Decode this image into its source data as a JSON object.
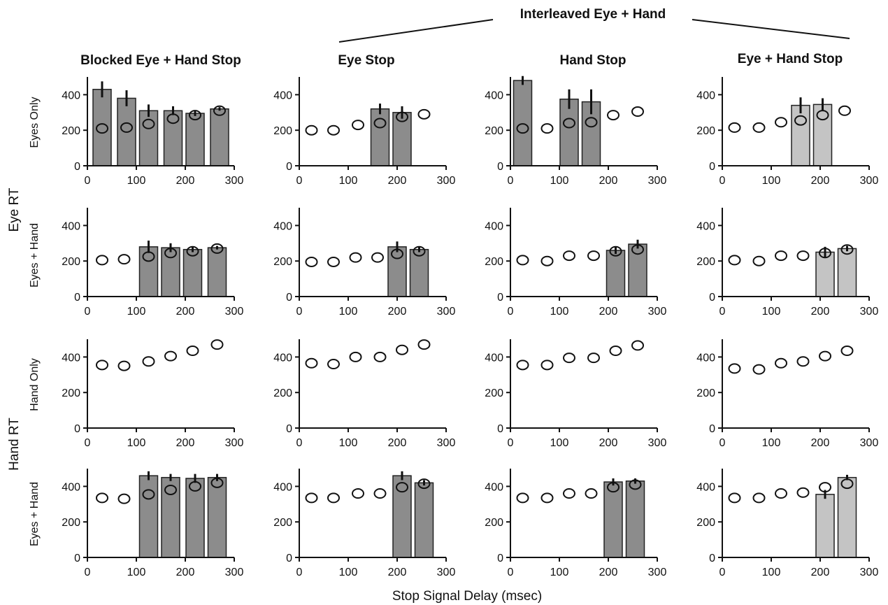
{
  "figure": {
    "group_title": "Interleaved Eye + Hand",
    "column_titles": [
      "Blocked Eye + Hand Stop",
      "Eye Stop",
      "Hand Stop",
      "Eye + Hand Stop"
    ],
    "row_labels": [
      "Eyes Only",
      "Eyes + Hand",
      "Hand Only",
      "Eyes + Hand"
    ],
    "side_labels": [
      "Eye RT",
      "Hand RT"
    ],
    "x_axis_label": "Stop Signal Delay (msec)",
    "colors": {
      "bar_dark": "#8c8c8c",
      "bar_light": "#c4c4c4",
      "axis": "#111111",
      "marker_fill": "#ffffff"
    }
  },
  "chart_data": [
    {
      "type": "bar+scatter",
      "column": "Blocked Eye + Hand Stop",
      "row": "Eyes Only",
      "xlim": [
        0,
        300
      ],
      "ylim": [
        0,
        500
      ],
      "xticks": [
        0,
        100,
        200,
        300
      ],
      "yticks": [
        0,
        200,
        400
      ],
      "bars": [
        {
          "x": 30,
          "value": 430,
          "err": 45
        },
        {
          "x": 80,
          "value": 380,
          "err": 45
        },
        {
          "x": 125,
          "value": 310,
          "err": 35
        },
        {
          "x": 175,
          "value": 310,
          "err": 25
        },
        {
          "x": 220,
          "value": 295,
          "err": 15
        },
        {
          "x": 270,
          "value": 320,
          "err": 10
        }
      ],
      "points": [
        {
          "x": 30,
          "y": 210
        },
        {
          "x": 80,
          "y": 215
        },
        {
          "x": 125,
          "y": 235
        },
        {
          "x": 175,
          "y": 265
        },
        {
          "x": 220,
          "y": 285
        },
        {
          "x": 270,
          "y": 310
        }
      ]
    },
    {
      "type": "bar+scatter",
      "column": "Eye Stop",
      "row": "Eyes Only",
      "xlim": [
        0,
        300
      ],
      "ylim": [
        0,
        500
      ],
      "xticks": [
        0,
        100,
        200,
        300
      ],
      "yticks": [
        0,
        200,
        400
      ],
      "bars": [
        {
          "x": 165,
          "value": 320,
          "err": 30
        },
        {
          "x": 210,
          "value": 300,
          "err": 35
        }
      ],
      "points": [
        {
          "x": 25,
          "y": 200
        },
        {
          "x": 70,
          "y": 200
        },
        {
          "x": 120,
          "y": 230
        },
        {
          "x": 165,
          "y": 240
        },
        {
          "x": 210,
          "y": 275
        },
        {
          "x": 255,
          "y": 290
        }
      ]
    },
    {
      "type": "bar+scatter",
      "column": "Hand Stop",
      "row": "Eyes Only",
      "xlim": [
        0,
        300
      ],
      "ylim": [
        0,
        500
      ],
      "xticks": [
        0,
        100,
        200,
        300
      ],
      "yticks": [
        0,
        200,
        400
      ],
      "bars": [
        {
          "x": 25,
          "value": 480,
          "err": 25
        },
        {
          "x": 120,
          "value": 375,
          "err": 55
        },
        {
          "x": 165,
          "value": 360,
          "err": 70
        }
      ],
      "points": [
        {
          "x": 25,
          "y": 210
        },
        {
          "x": 75,
          "y": 210
        },
        {
          "x": 120,
          "y": 240
        },
        {
          "x": 165,
          "y": 245
        },
        {
          "x": 210,
          "y": 285
        },
        {
          "x": 260,
          "y": 305
        }
      ]
    },
    {
      "type": "bar+scatter",
      "column": "Eye + Hand Stop",
      "row": "Eyes Only",
      "xlim": [
        0,
        300
      ],
      "ylim": [
        0,
        500
      ],
      "xticks": [
        0,
        100,
        200,
        300
      ],
      "yticks": [
        0,
        200,
        400
      ],
      "bar_shade": "light",
      "bars": [
        {
          "x": 160,
          "value": 340,
          "err": 45
        },
        {
          "x": 205,
          "value": 345,
          "err": 35
        }
      ],
      "points": [
        {
          "x": 25,
          "y": 215
        },
        {
          "x": 75,
          "y": 215
        },
        {
          "x": 120,
          "y": 245
        },
        {
          "x": 160,
          "y": 255
        },
        {
          "x": 205,
          "y": 285
        },
        {
          "x": 250,
          "y": 310
        }
      ]
    },
    {
      "type": "bar+scatter",
      "column": "Blocked Eye + Hand Stop",
      "row": "Eyes + Hand",
      "xlim": [
        0,
        300
      ],
      "ylim": [
        0,
        500
      ],
      "xticks": [
        0,
        100,
        200,
        300
      ],
      "yticks": [
        0,
        200,
        400
      ],
      "bars": [
        {
          "x": 125,
          "value": 280,
          "err": 35
        },
        {
          "x": 170,
          "value": 275,
          "err": 25
        },
        {
          "x": 215,
          "value": 265,
          "err": 15
        },
        {
          "x": 265,
          "value": 275,
          "err": 10
        }
      ],
      "points": [
        {
          "x": 30,
          "y": 205
        },
        {
          "x": 75,
          "y": 210
        },
        {
          "x": 125,
          "y": 225
        },
        {
          "x": 170,
          "y": 245
        },
        {
          "x": 215,
          "y": 255
        },
        {
          "x": 265,
          "y": 270
        }
      ]
    },
    {
      "type": "bar+scatter",
      "column": "Eye Stop",
      "row": "Eyes + Hand",
      "xlim": [
        0,
        300
      ],
      "ylim": [
        0,
        500
      ],
      "xticks": [
        0,
        100,
        200,
        300
      ],
      "yticks": [
        0,
        200,
        400
      ],
      "bars": [
        {
          "x": 200,
          "value": 280,
          "err": 30
        },
        {
          "x": 245,
          "value": 265,
          "err": 15
        }
      ],
      "points": [
        {
          "x": 25,
          "y": 195
        },
        {
          "x": 70,
          "y": 195
        },
        {
          "x": 115,
          "y": 220
        },
        {
          "x": 160,
          "y": 220
        },
        {
          "x": 200,
          "y": 240
        },
        {
          "x": 245,
          "y": 255
        }
      ]
    },
    {
      "type": "bar+scatter",
      "column": "Hand Stop",
      "row": "Eyes + Hand",
      "xlim": [
        0,
        300
      ],
      "ylim": [
        0,
        500
      ],
      "xticks": [
        0,
        100,
        200,
        300
      ],
      "yticks": [
        0,
        200,
        400
      ],
      "bars": [
        {
          "x": 215,
          "value": 260,
          "err": 20
        },
        {
          "x": 260,
          "value": 295,
          "err": 25
        }
      ],
      "points": [
        {
          "x": 25,
          "y": 205
        },
        {
          "x": 75,
          "y": 200
        },
        {
          "x": 120,
          "y": 230
        },
        {
          "x": 170,
          "y": 230
        },
        {
          "x": 215,
          "y": 255
        },
        {
          "x": 260,
          "y": 265
        }
      ]
    },
    {
      "type": "bar+scatter",
      "column": "Eye + Hand Stop",
      "row": "Eyes + Hand",
      "xlim": [
        0,
        300
      ],
      "ylim": [
        0,
        500
      ],
      "xticks": [
        0,
        100,
        200,
        300
      ],
      "yticks": [
        0,
        200,
        400
      ],
      "bar_shade": "light",
      "bars": [
        {
          "x": 210,
          "value": 250,
          "err": 30
        },
        {
          "x": 255,
          "value": 270,
          "err": 15
        }
      ],
      "points": [
        {
          "x": 25,
          "y": 205
        },
        {
          "x": 75,
          "y": 200
        },
        {
          "x": 120,
          "y": 230
        },
        {
          "x": 165,
          "y": 230
        },
        {
          "x": 210,
          "y": 245
        },
        {
          "x": 255,
          "y": 265
        }
      ]
    },
    {
      "type": "scatter",
      "column": "Blocked Eye + Hand Stop",
      "row": "Hand Only",
      "xlim": [
        0,
        300
      ],
      "ylim": [
        0,
        500
      ],
      "xticks": [
        0,
        100,
        200,
        300
      ],
      "yticks": [
        0,
        200,
        400
      ],
      "bars": [],
      "points": [
        {
          "x": 30,
          "y": 355
        },
        {
          "x": 75,
          "y": 350
        },
        {
          "x": 125,
          "y": 375
        },
        {
          "x": 170,
          "y": 405
        },
        {
          "x": 215,
          "y": 435
        },
        {
          "x": 265,
          "y": 470
        }
      ]
    },
    {
      "type": "scatter",
      "column": "Eye Stop",
      "row": "Hand Only",
      "xlim": [
        0,
        300
      ],
      "ylim": [
        0,
        500
      ],
      "xticks": [
        0,
        100,
        200,
        300
      ],
      "yticks": [
        0,
        200,
        400
      ],
      "bars": [],
      "points": [
        {
          "x": 25,
          "y": 365
        },
        {
          "x": 70,
          "y": 360
        },
        {
          "x": 115,
          "y": 400
        },
        {
          "x": 165,
          "y": 400
        },
        {
          "x": 210,
          "y": 440
        },
        {
          "x": 255,
          "y": 470
        }
      ]
    },
    {
      "type": "scatter",
      "column": "Hand Stop",
      "row": "Hand Only",
      "xlim": [
        0,
        300
      ],
      "ylim": [
        0,
        500
      ],
      "xticks": [
        0,
        100,
        200,
        300
      ],
      "yticks": [
        0,
        200,
        400
      ],
      "bars": [],
      "points": [
        {
          "x": 25,
          "y": 355
        },
        {
          "x": 75,
          "y": 355
        },
        {
          "x": 120,
          "y": 395
        },
        {
          "x": 170,
          "y": 395
        },
        {
          "x": 215,
          "y": 435
        },
        {
          "x": 260,
          "y": 465
        }
      ]
    },
    {
      "type": "scatter",
      "column": "Eye + Hand Stop",
      "row": "Hand Only",
      "xlim": [
        0,
        300
      ],
      "ylim": [
        0,
        500
      ],
      "xticks": [
        0,
        100,
        200,
        300
      ],
      "yticks": [
        0,
        200,
        400
      ],
      "bars": [],
      "points": [
        {
          "x": 25,
          "y": 335
        },
        {
          "x": 75,
          "y": 330
        },
        {
          "x": 120,
          "y": 365
        },
        {
          "x": 165,
          "y": 375
        },
        {
          "x": 210,
          "y": 405
        },
        {
          "x": 255,
          "y": 435
        }
      ]
    },
    {
      "type": "bar+scatter",
      "column": "Blocked Eye + Hand Stop",
      "row": "Eyes + Hand",
      "xlim": [
        0,
        300
      ],
      "ylim": [
        0,
        500
      ],
      "xticks": [
        0,
        100,
        200,
        300
      ],
      "yticks": [
        0,
        200,
        400
      ],
      "bars": [
        {
          "x": 125,
          "value": 460,
          "err": 25
        },
        {
          "x": 170,
          "value": 450,
          "err": 20
        },
        {
          "x": 220,
          "value": 445,
          "err": 25
        },
        {
          "x": 265,
          "value": 450,
          "err": 20
        }
      ],
      "points": [
        {
          "x": 30,
          "y": 335
        },
        {
          "x": 75,
          "y": 330
        },
        {
          "x": 125,
          "y": 355
        },
        {
          "x": 170,
          "y": 380
        },
        {
          "x": 220,
          "y": 400
        },
        {
          "x": 265,
          "y": 420
        }
      ]
    },
    {
      "type": "bar+scatter",
      "column": "Eye Stop",
      "row": "Eyes + Hand",
      "xlim": [
        0,
        300
      ],
      "ylim": [
        0,
        500
      ],
      "xticks": [
        0,
        100,
        200,
        300
      ],
      "yticks": [
        0,
        200,
        400
      ],
      "bars": [
        {
          "x": 210,
          "value": 460,
          "err": 25
        },
        {
          "x": 255,
          "value": 420,
          "err": 15
        }
      ],
      "points": [
        {
          "x": 25,
          "y": 335
        },
        {
          "x": 70,
          "y": 335
        },
        {
          "x": 120,
          "y": 360
        },
        {
          "x": 165,
          "y": 360
        },
        {
          "x": 210,
          "y": 395
        },
        {
          "x": 255,
          "y": 415
        }
      ]
    },
    {
      "type": "bar+scatter",
      "column": "Hand Stop",
      "row": "Eyes + Hand",
      "xlim": [
        0,
        300
      ],
      "ylim": [
        0,
        500
      ],
      "xticks": [
        0,
        100,
        200,
        300
      ],
      "yticks": [
        0,
        200,
        400
      ],
      "bars": [
        {
          "x": 210,
          "value": 425,
          "err": 20
        },
        {
          "x": 255,
          "value": 430,
          "err": 15
        }
      ],
      "points": [
        {
          "x": 25,
          "y": 335
        },
        {
          "x": 75,
          "y": 335
        },
        {
          "x": 120,
          "y": 360
        },
        {
          "x": 165,
          "y": 360
        },
        {
          "x": 210,
          "y": 395
        },
        {
          "x": 255,
          "y": 410
        }
      ]
    },
    {
      "type": "bar+scatter",
      "column": "Eye + Hand Stop",
      "row": "Eyes + Hand",
      "xlim": [
        0,
        300
      ],
      "ylim": [
        0,
        500
      ],
      "xticks": [
        0,
        100,
        200,
        300
      ],
      "yticks": [
        0,
        200,
        400
      ],
      "bar_shade": "light",
      "bars": [
        {
          "x": 210,
          "value": 355,
          "err": 25
        },
        {
          "x": 255,
          "value": 450,
          "err": 15
        }
      ],
      "points": [
        {
          "x": 25,
          "y": 335
        },
        {
          "x": 75,
          "y": 335
        },
        {
          "x": 120,
          "y": 360
        },
        {
          "x": 165,
          "y": 365
        },
        {
          "x": 210,
          "y": 395
        },
        {
          "x": 255,
          "y": 415
        }
      ]
    }
  ]
}
